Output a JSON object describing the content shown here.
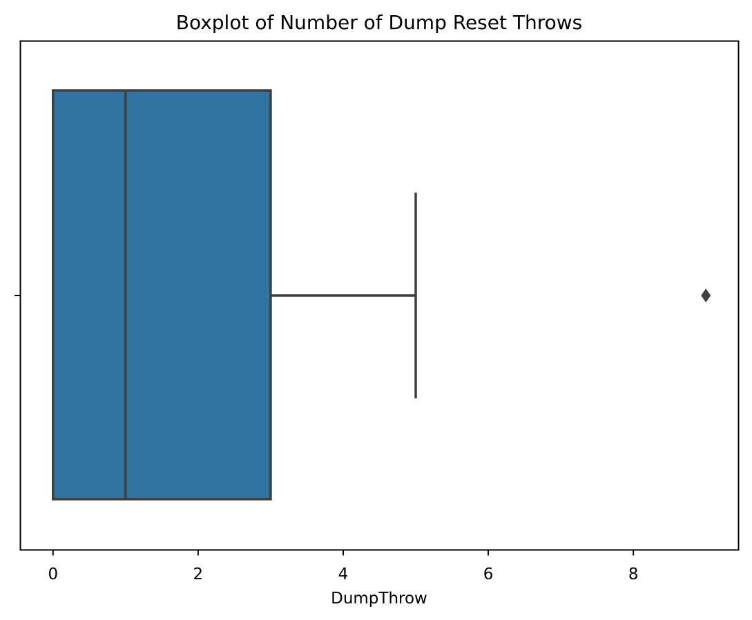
{
  "chart_data": {
    "type": "box",
    "title": "Boxplot of Number of Dump Reset Throws",
    "xlabel": "DumpThrow",
    "ylabel": "",
    "xlim": [
      -0.45,
      9.45
    ],
    "xticks": [
      0,
      2,
      4,
      6,
      8
    ],
    "xtick_labels": [
      "0",
      "2",
      "4",
      "6",
      "8"
    ],
    "orientation": "horizontal",
    "grid": false,
    "box": {
      "min": 0,
      "q1": 0,
      "median": 1,
      "q3": 3,
      "whisker_high": 5,
      "outliers": [
        9
      ]
    },
    "colors": {
      "box_fill": "#3274a1",
      "line": "#3f3f3f",
      "axes": "#000000"
    }
  }
}
